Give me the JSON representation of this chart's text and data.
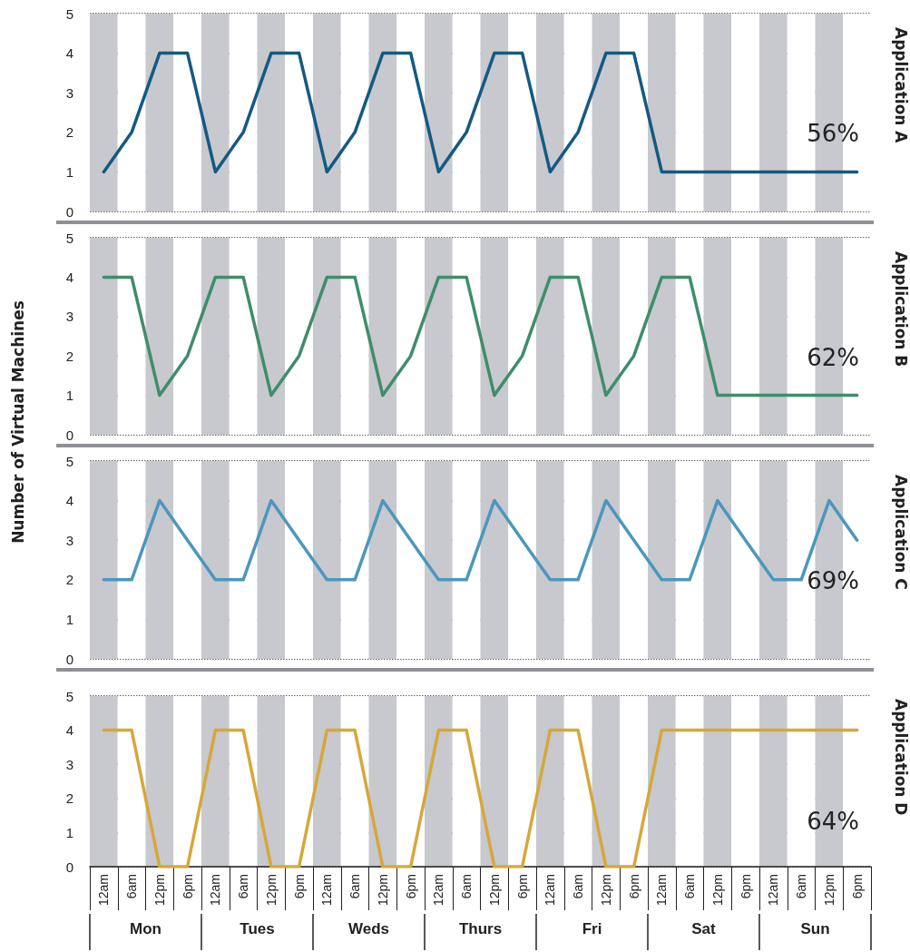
{
  "chart_data": [
    {
      "type": "line",
      "series": [
        {
          "name": "Application A",
          "color": "#135a84",
          "values": [
            1,
            2,
            4,
            4,
            1,
            2,
            4,
            4,
            1,
            2,
            4,
            4,
            1,
            2,
            4,
            4,
            1,
            2,
            4,
            4,
            1,
            1,
            1,
            1,
            1,
            1,
            1,
            1
          ]
        }
      ],
      "ylim": [
        0,
        5
      ],
      "yticks": [
        0,
        1,
        2,
        3,
        4,
        5
      ],
      "grid": true,
      "tick_labels": "y",
      "marker": "none",
      "annotations": [
        "56%"
      ]
    },
    {
      "type": "line",
      "ylabel": "Number of Virtual Machines",
      "series": [
        {
          "name": "Application B",
          "color": "#3f8d6b",
          "values": [
            4,
            4,
            1,
            2,
            4,
            4,
            1,
            2,
            4,
            4,
            1,
            2,
            4,
            4,
            1,
            2,
            4,
            4,
            1,
            2,
            4,
            4,
            1,
            1,
            1,
            1,
            1,
            1
          ]
        }
      ],
      "ylim": [
        0,
        5
      ],
      "yticks": [
        0,
        1,
        2,
        3,
        4,
        5
      ],
      "grid": true,
      "tick_labels": "y",
      "marker": "none",
      "annotations": [
        "62%"
      ]
    },
    {
      "type": "line",
      "series": [
        {
          "name": "Application C",
          "color": "#4c97bc",
          "values": [
            2,
            2,
            4,
            3,
            2,
            2,
            4,
            3,
            2,
            2,
            4,
            3,
            2,
            2,
            4,
            3,
            2,
            2,
            4,
            3,
            2,
            2,
            4,
            3,
            2,
            2,
            4,
            3
          ]
        }
      ],
      "ylim": [
        0,
        5
      ],
      "yticks": [
        0,
        1,
        2,
        3,
        4,
        5
      ],
      "grid": true,
      "tick_labels": "y",
      "marker": "none",
      "annotations": [
        "69%"
      ]
    },
    {
      "type": "line",
      "categories": [
        "12am",
        "6am",
        "12pm",
        "6pm",
        "12am",
        "6am",
        "12pm",
        "6pm",
        "12am",
        "6am",
        "12pm",
        "6pm",
        "12am",
        "6am",
        "12pm",
        "6pm",
        "12am",
        "6am",
        "12pm",
        "6pm",
        "12am",
        "6am",
        "12pm",
        "6pm",
        "12am",
        "6am",
        "12pm",
        "6pm"
      ],
      "series": [
        {
          "name": "Application D",
          "color": "#d4a83a",
          "values": [
            4,
            4,
            0,
            0,
            4,
            4,
            0,
            0,
            4,
            4,
            0,
            0,
            4,
            4,
            0,
            0,
            4,
            4,
            0,
            0,
            4,
            4,
            4,
            4,
            4,
            4,
            4,
            4
          ]
        }
      ],
      "ylim": [
        0,
        5
      ],
      "yticks": [
        0,
        1,
        2,
        3,
        4,
        5
      ],
      "grid": true,
      "marker": "none",
      "annotations": [
        "64%",
        "Mon",
        "Tues",
        "Weds",
        "Thurs",
        "Fri",
        "Sat",
        "Sun"
      ]
    }
  ]
}
